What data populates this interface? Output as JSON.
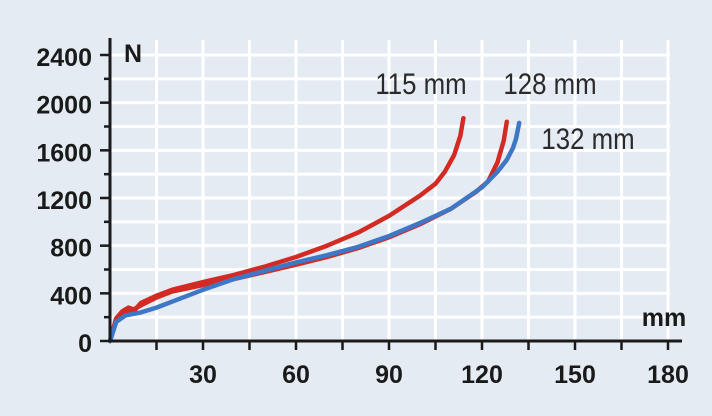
{
  "chart_data": {
    "type": "line",
    "x_unit": "mm",
    "y_unit": "N",
    "xlim": [
      0,
      180
    ],
    "ylim": [
      0,
      2400
    ],
    "x_ticks": [
      30,
      60,
      90,
      120,
      150,
      180
    ],
    "y_ticks": [
      0,
      400,
      800,
      1200,
      1600,
      2000,
      2400
    ],
    "grid": true,
    "colors": {
      "background": "#e4ebf3",
      "grid": "#ffffff",
      "axis": "#1a1a1a",
      "red": "#d42a24",
      "blue": "#3e77c6"
    },
    "series": [
      {
        "name": "115 mm",
        "color": "#d42a24",
        "points": [
          [
            0,
            0
          ],
          [
            2,
            190
          ],
          [
            4,
            250
          ],
          [
            6,
            280
          ],
          [
            8,
            260
          ],
          [
            10,
            320
          ],
          [
            15,
            380
          ],
          [
            20,
            430
          ],
          [
            30,
            495
          ],
          [
            40,
            555
          ],
          [
            50,
            625
          ],
          [
            60,
            705
          ],
          [
            70,
            800
          ],
          [
            80,
            910
          ],
          [
            90,
            1050
          ],
          [
            100,
            1220
          ],
          [
            105,
            1320
          ],
          [
            108,
            1420
          ],
          [
            111,
            1560
          ],
          [
            113,
            1720
          ],
          [
            114,
            1870
          ]
        ]
      },
      {
        "name": "128 mm",
        "color": "#d42a24",
        "points": [
          [
            0,
            0
          ],
          [
            2,
            170
          ],
          [
            5,
            230
          ],
          [
            8,
            270
          ],
          [
            10,
            300
          ],
          [
            15,
            365
          ],
          [
            20,
            415
          ],
          [
            30,
            470
          ],
          [
            40,
            520
          ],
          [
            50,
            580
          ],
          [
            60,
            640
          ],
          [
            70,
            705
          ],
          [
            80,
            780
          ],
          [
            90,
            870
          ],
          [
            100,
            980
          ],
          [
            110,
            1110
          ],
          [
            118,
            1250
          ],
          [
            122,
            1340
          ],
          [
            125,
            1500
          ],
          [
            127,
            1680
          ],
          [
            128,
            1840
          ]
        ]
      },
      {
        "name": "132 mm",
        "color": "#3e77c6",
        "points": [
          [
            0,
            0
          ],
          [
            2,
            160
          ],
          [
            5,
            215
          ],
          [
            10,
            240
          ],
          [
            15,
            280
          ],
          [
            20,
            330
          ],
          [
            30,
            430
          ],
          [
            40,
            520
          ],
          [
            50,
            590
          ],
          [
            60,
            660
          ],
          [
            70,
            720
          ],
          [
            80,
            790
          ],
          [
            90,
            880
          ],
          [
            100,
            990
          ],
          [
            110,
            1110
          ],
          [
            120,
            1290
          ],
          [
            125,
            1420
          ],
          [
            128,
            1520
          ],
          [
            130,
            1620
          ],
          [
            131,
            1700
          ],
          [
            132,
            1830
          ]
        ]
      }
    ]
  }
}
